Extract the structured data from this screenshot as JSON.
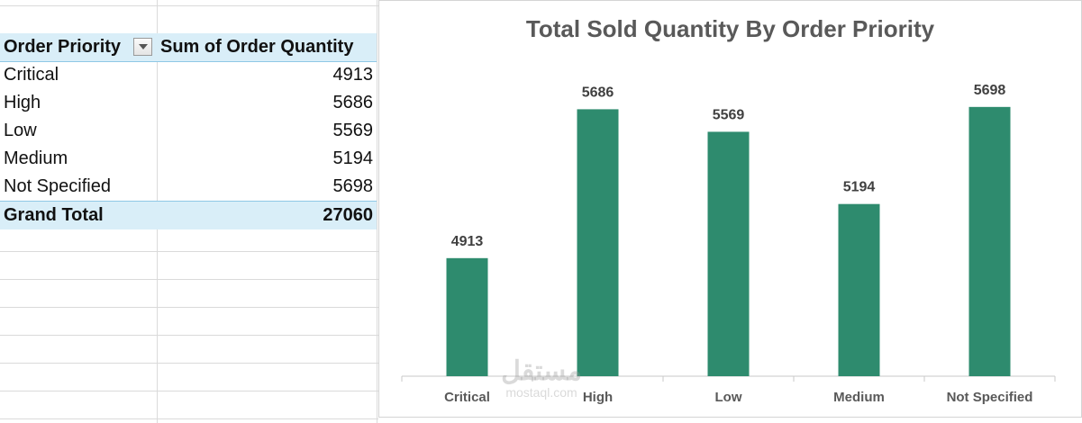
{
  "pivot": {
    "headers": {
      "row_label": "Order Priority",
      "value_label": "Sum of Order Quantity"
    },
    "rows": [
      {
        "label": "Critical",
        "value": "4913"
      },
      {
        "label": "High",
        "value": "5686"
      },
      {
        "label": "Low",
        "value": "5569"
      },
      {
        "label": "Medium",
        "value": "5194"
      },
      {
        "label": "Not Specified",
        "value": "5698"
      }
    ],
    "total": {
      "label": "Grand Total",
      "value": "27060"
    }
  },
  "chart_data": {
    "type": "bar",
    "title": "Total Sold Quantity By Order Priority",
    "categories": [
      "Critical",
      "High",
      "Low",
      "Medium",
      "Not Specified"
    ],
    "values": [
      4913,
      5686,
      5569,
      5194,
      5698
    ],
    "ylim": [
      4300,
      5800
    ],
    "xlabel": "",
    "ylabel": "",
    "grid": false,
    "legend": "none",
    "bar_color": "#2e8b6e"
  },
  "watermark": {
    "line1": "مستقل",
    "line2": "mostaql.com"
  }
}
